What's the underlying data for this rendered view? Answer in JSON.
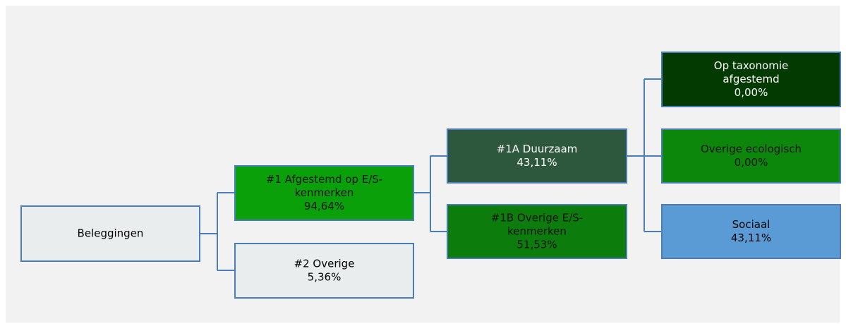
{
  "nodes": [
    {
      "label": [
        "Beleggingen"
      ]
    },
    {
      "label": [
        "#1 Afgestemd op E/S-",
        "kenmerken"
      ],
      "value": "94,64%"
    },
    {
      "label": [
        "#2 Overige"
      ],
      "value": "5,36%"
    },
    {
      "label": [
        "#1A Duurzaam"
      ],
      "value": "43,11%"
    },
    {
      "label": [
        "#1B Overige E/S-",
        "kenmerken"
      ],
      "value": "51,53%"
    },
    {
      "label": [
        "Op taxonomie",
        "afgestemd"
      ],
      "value": "0,00%"
    },
    {
      "label": [
        "Overige ecologisch"
      ],
      "value": "0,00%"
    },
    {
      "label": [
        "Sociaal"
      ],
      "value": "43,11%"
    }
  ]
}
